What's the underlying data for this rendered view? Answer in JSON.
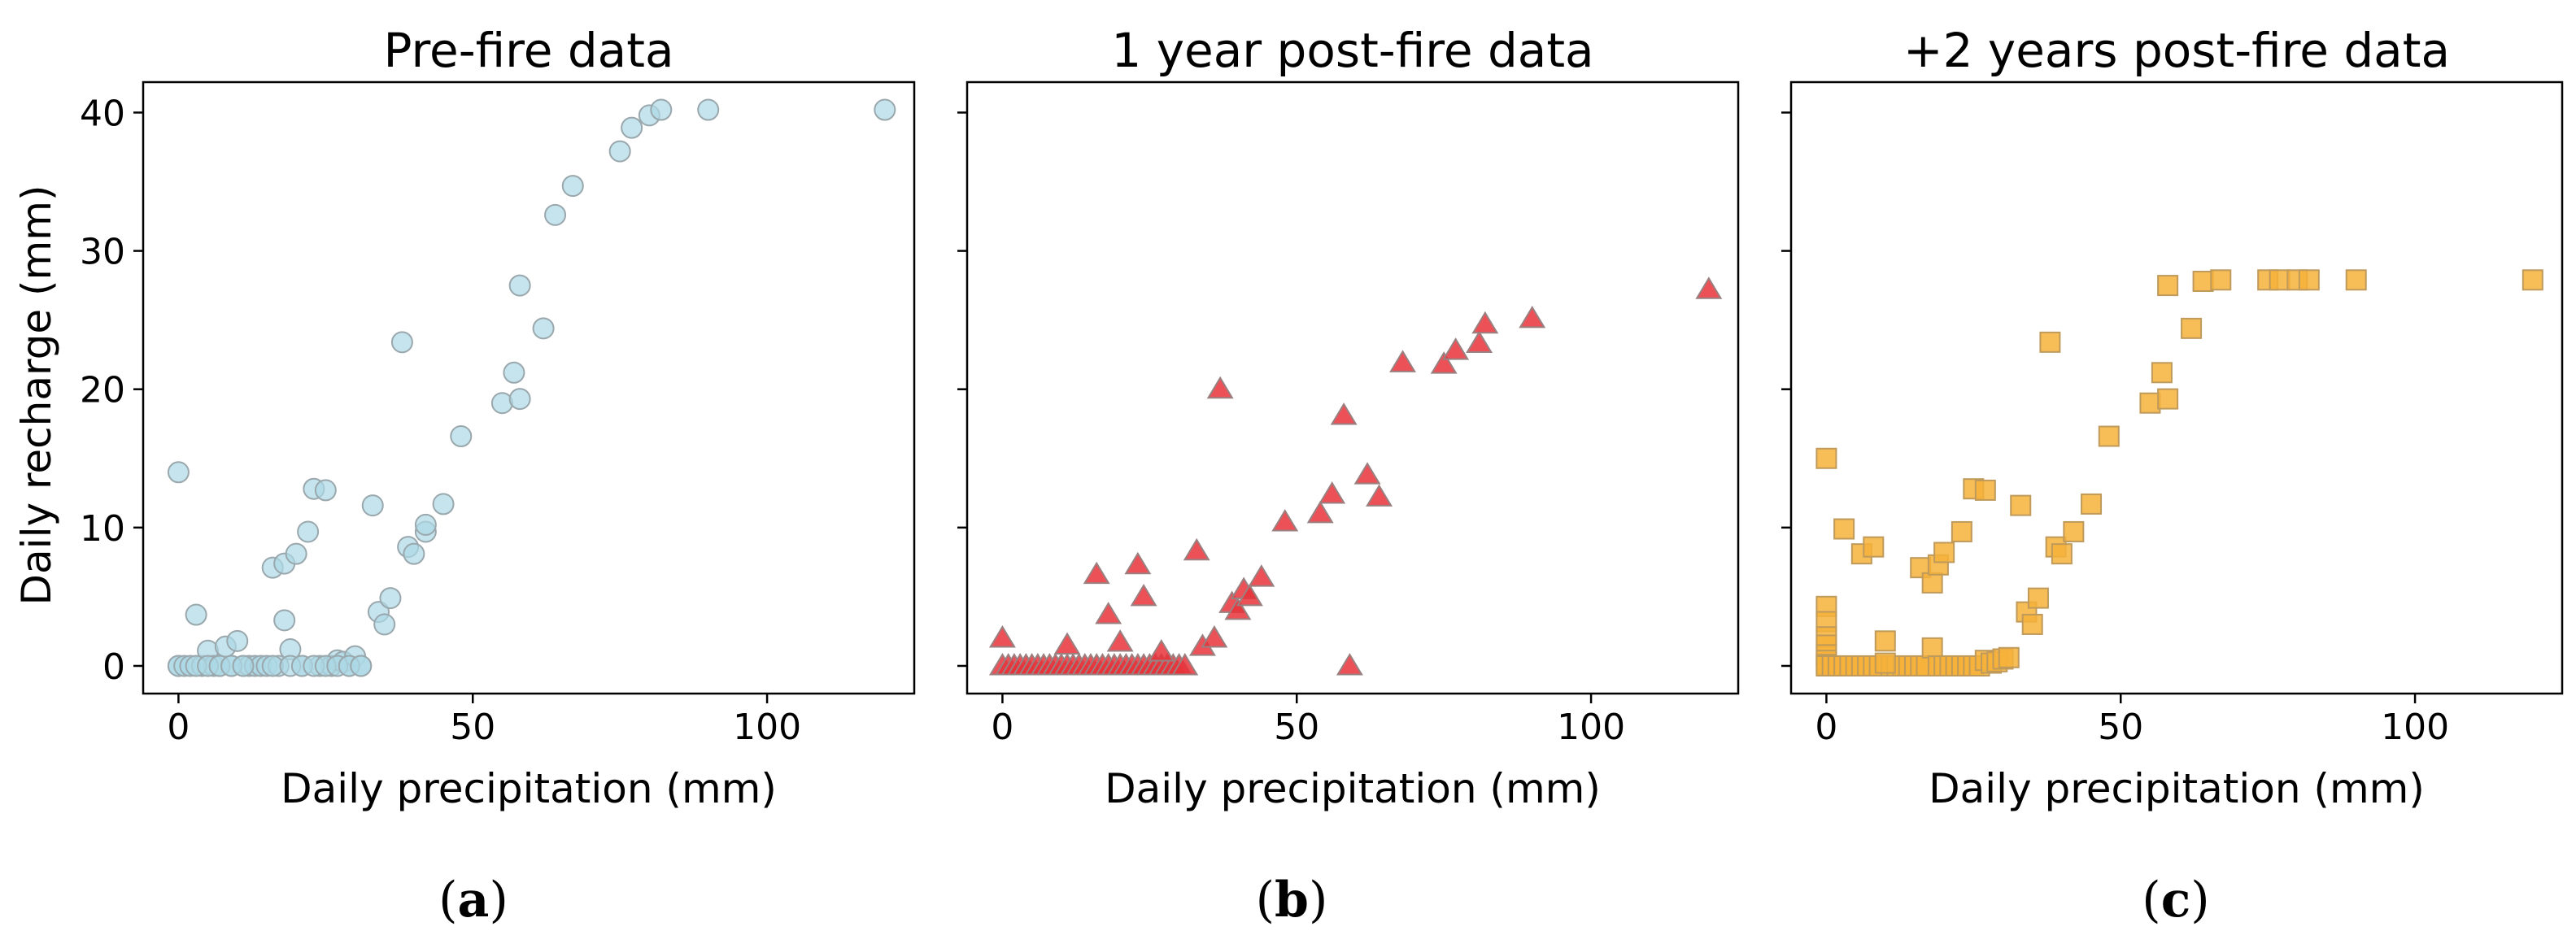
{
  "figure": {
    "ylabel": "Daily recharge (mm)",
    "ylim": [
      -2,
      42.2
    ],
    "xlim": [
      -6,
      125
    ],
    "xticks": [
      0,
      50,
      100
    ],
    "yticks": [
      0,
      10,
      20,
      30,
      40
    ]
  },
  "chart_data": [
    {
      "type": "scatter",
      "title": "Pre-fire data",
      "xlabel": "Daily precipitation (mm)",
      "ylabel": "Daily recharge (mm)",
      "panel_label": "a",
      "marker": "circle",
      "color": "#add8e6",
      "edge_color": "#9aa8ad",
      "x": [
        0,
        0,
        0,
        1,
        2,
        3,
        4,
        5,
        6,
        7,
        8,
        9,
        10,
        11,
        12,
        13,
        14,
        15,
        16,
        17,
        18,
        19,
        20,
        21,
        22,
        23,
        24,
        25,
        26,
        27,
        28,
        29,
        30,
        31,
        3,
        5,
        7,
        9,
        11,
        16,
        18,
        19,
        21,
        23,
        25,
        27,
        29,
        31,
        33,
        34,
        35,
        36,
        38,
        39,
        40,
        42,
        42,
        45,
        48,
        55,
        57,
        58,
        58,
        62,
        64,
        67,
        75,
        77,
        80,
        82,
        90,
        120
      ],
      "y": [
        14,
        0,
        0,
        0,
        0,
        3.7,
        0,
        1.1,
        0,
        0,
        1.4,
        0,
        1.8,
        0,
        0,
        0,
        0,
        0,
        7.1,
        0,
        7.4,
        1.2,
        8.1,
        0,
        9.7,
        12.8,
        0,
        12.7,
        0,
        0.4,
        0.3,
        0,
        0.7,
        0,
        0,
        0,
        0,
        0,
        0,
        0,
        3.3,
        0,
        0,
        0,
        0,
        0,
        0,
        0,
        11.6,
        3.9,
        3,
        4.9,
        23.4,
        8.6,
        8.1,
        9.7,
        10.2,
        11.7,
        16.6,
        19,
        21.2,
        27.5,
        19.3,
        24.4,
        32.6,
        34.7,
        37.2,
        38.9,
        39.8,
        40.2,
        40.2,
        40.2
      ]
    },
    {
      "type": "scatter",
      "title": "1 year post-fire data",
      "xlabel": "Daily precipitation (mm)",
      "ylabel": "",
      "panel_label": "b",
      "marker": "triangle",
      "color": "#e8333a",
      "edge_color": "#9a8080",
      "x": [
        0,
        0,
        1,
        2,
        3,
        4,
        5,
        6,
        7,
        8,
        9,
        10,
        11,
        12,
        13,
        14,
        15,
        16,
        17,
        18,
        19,
        20,
        21,
        22,
        23,
        24,
        25,
        26,
        27,
        28,
        29,
        30,
        31,
        11,
        16,
        18,
        20,
        23,
        24,
        27,
        33,
        34,
        36,
        37,
        39,
        40,
        41,
        42,
        44,
        48,
        54,
        56,
        58,
        59,
        62,
        64,
        68,
        75,
        77,
        81,
        82,
        90,
        120
      ],
      "y": [
        2,
        0,
        0,
        0,
        0,
        0,
        0,
        0,
        0,
        0,
        0,
        0,
        0,
        0,
        0,
        0,
        0,
        0,
        0,
        0,
        0,
        0,
        0,
        0,
        0,
        0,
        0,
        0,
        0,
        0,
        0,
        0,
        0,
        1.5,
        6.6,
        3.7,
        1.7,
        7.3,
        5,
        1,
        8.3,
        1.4,
        2,
        20,
        4.5,
        4,
        5.5,
        5,
        6.4,
        10.4,
        11,
        12.4,
        18.1,
        0,
        13.8,
        12.2,
        21.9,
        21.8,
        22.8,
        23.3,
        24.7,
        25.1,
        27.2
      ]
    },
    {
      "type": "scatter",
      "title": "+2 years post-fire data",
      "xlabel": "Daily precipitation (mm)",
      "ylabel": "",
      "panel_label": "c",
      "marker": "square",
      "color": "#f6b23a",
      "edge_color": "#bf9a5a",
      "x": [
        0,
        0,
        0,
        0,
        0,
        0,
        0,
        0,
        0,
        1,
        2,
        3,
        4,
        5,
        6,
        7,
        8,
        9,
        10,
        11,
        12,
        13,
        14,
        15,
        16,
        17,
        18,
        19,
        20,
        21,
        22,
        23,
        24,
        25,
        26,
        27,
        28,
        29,
        30,
        31,
        3,
        6,
        8,
        10,
        16,
        18,
        19,
        20,
        23,
        25,
        27,
        33,
        34,
        35,
        36,
        38,
        39,
        40,
        42,
        45,
        48,
        55,
        57,
        58,
        58,
        62,
        64,
        67,
        75,
        77,
        80,
        82,
        90,
        120
      ],
      "y": [
        15,
        4.3,
        3.2,
        2.1,
        1.5,
        0.8,
        0.4,
        0.1,
        0,
        0,
        0,
        0,
        0,
        0,
        0,
        0,
        0,
        0,
        1.8,
        0,
        0,
        0,
        0,
        0,
        0,
        0,
        1.3,
        0,
        0,
        0,
        0,
        0,
        0,
        0,
        0,
        0.4,
        0.2,
        0.3,
        0.5,
        0.6,
        9.9,
        8.1,
        8.6,
        0.2,
        7.1,
        6,
        7.3,
        8.2,
        9.7,
        12.8,
        12.7,
        11.6,
        3.9,
        3,
        4.9,
        23.4,
        8.6,
        8.1,
        9.7,
        11.7,
        16.6,
        19,
        21.2,
        27.5,
        19.3,
        24.4,
        27.8,
        27.9,
        27.9,
        27.9,
        27.9,
        27.9,
        27.9,
        27.9
      ]
    }
  ]
}
